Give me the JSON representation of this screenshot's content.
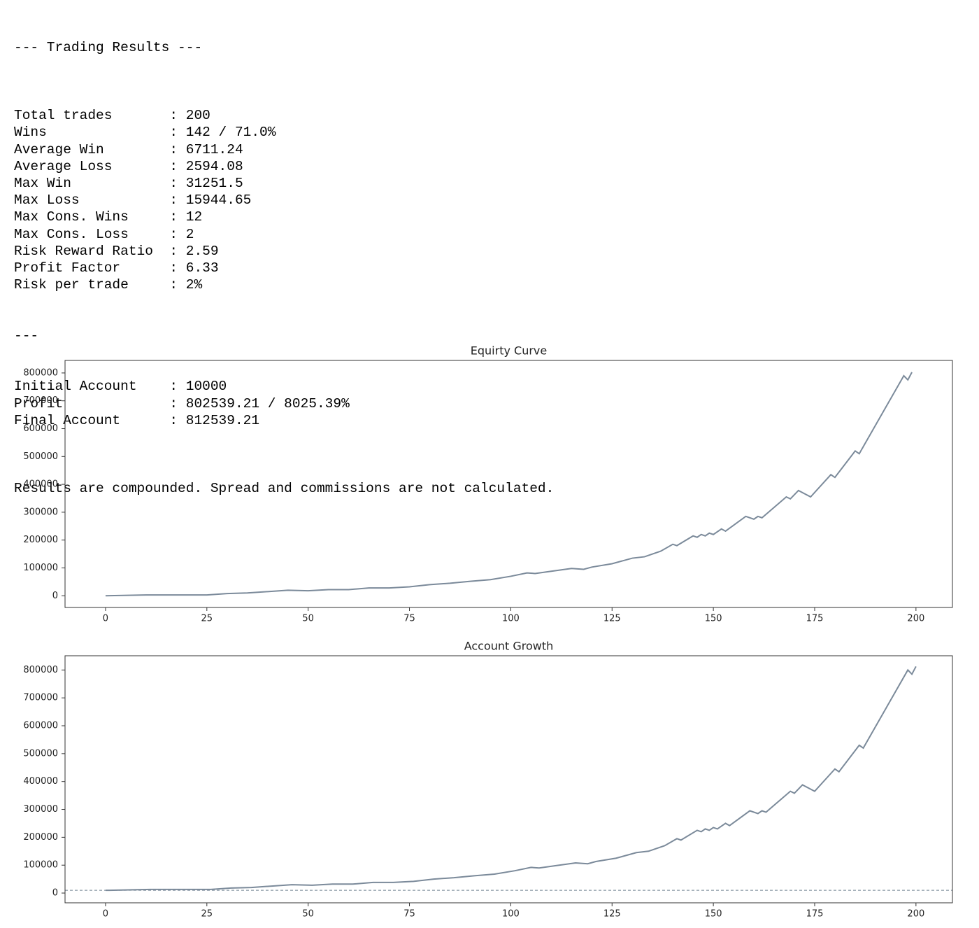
{
  "report": {
    "title": "--- Trading Results ---",
    "stats": [
      "Total trades       : 200",
      "Wins               : 142 / 71.0%",
      "Average Win        : 6711.24",
      "Average Loss       : 2594.08",
      "Max Win            : 31251.5",
      "Max Loss           : 15944.65",
      "Max Cons. Wins     : 12",
      "Max Cons. Loss     : 2",
      "Risk Reward Ratio  : 2.59",
      "Profit Factor      : 6.33",
      "Risk per trade     : 2%"
    ],
    "separator": "---",
    "account": [
      "Initial Account    : 10000",
      "Profit             : 802539.21 / 8025.39%",
      "Final Account      : 812539.21"
    ],
    "note": "Results are compounded. Spread and commissions are not calculated."
  },
  "chart_data": [
    {
      "type": "line",
      "title": "Equirty Curve",
      "x": [
        0,
        10,
        20,
        25,
        30,
        35,
        40,
        45,
        50,
        55,
        60,
        65,
        70,
        75,
        80,
        85,
        90,
        95,
        100,
        104,
        106,
        110,
        115,
        118,
        120,
        125,
        130,
        133,
        137,
        140,
        141,
        145,
        146,
        147,
        148,
        149,
        150,
        152,
        153,
        158,
        160,
        161,
        162,
        168,
        169,
        171,
        174,
        179,
        180,
        185,
        186,
        197,
        198,
        199
      ],
      "series": [
        {
          "color": "#7b8a9a",
          "values": [
            0,
            3000,
            3000,
            3000,
            8000,
            10000,
            15000,
            20000,
            18000,
            22000,
            22000,
            28000,
            28000,
            32000,
            40000,
            45000,
            52000,
            58000,
            70000,
            82000,
            80000,
            88000,
            98000,
            95000,
            103000,
            115000,
            135000,
            140000,
            160000,
            185000,
            180000,
            215000,
            210000,
            220000,
            215000,
            225000,
            220000,
            240000,
            232000,
            285000,
            275000,
            285000,
            280000,
            355000,
            348000,
            378000,
            355000,
            435000,
            425000,
            520000,
            510000,
            790000,
            775000,
            802539.21
          ]
        }
      ],
      "xlim": [
        -10,
        209
      ],
      "xticks": [
        0,
        25,
        50,
        75,
        100,
        125,
        150,
        175,
        200
      ],
      "ylim": [
        -42000,
        845000
      ],
      "yticks": [
        0,
        100000,
        200000,
        300000,
        400000,
        500000,
        600000,
        700000,
        800000
      ]
    },
    {
      "type": "line",
      "title": "Account Growth",
      "x": [
        0,
        1,
        11,
        21,
        26,
        31,
        36,
        41,
        46,
        51,
        56,
        61,
        66,
        71,
        76,
        81,
        86,
        91,
        96,
        101,
        105,
        107,
        111,
        116,
        119,
        121,
        126,
        131,
        134,
        138,
        141,
        142,
        146,
        147,
        148,
        149,
        150,
        151,
        153,
        154,
        159,
        161,
        162,
        163,
        169,
        170,
        172,
        175,
        180,
        181,
        186,
        187,
        198,
        199,
        200
      ],
      "series": [
        {
          "color": "#7b8a9a",
          "values": [
            10000,
            10000,
            13000,
            13000,
            13000,
            18000,
            20000,
            25000,
            30000,
            28000,
            32000,
            32000,
            38000,
            38000,
            42000,
            50000,
            55000,
            62000,
            68000,
            80000,
            92000,
            90000,
            98000,
            108000,
            105000,
            113000,
            125000,
            145000,
            150000,
            170000,
            195000,
            190000,
            225000,
            220000,
            230000,
            225000,
            235000,
            230000,
            250000,
            242000,
            295000,
            285000,
            295000,
            290000,
            365000,
            358000,
            388000,
            365000,
            445000,
            435000,
            530000,
            520000,
            800000,
            785000,
            812539.21
          ]
        }
      ],
      "reference_line": 10000,
      "xlim": [
        -10,
        209
      ],
      "xticks": [
        0,
        25,
        50,
        75,
        100,
        125,
        150,
        175,
        200
      ],
      "ylim": [
        -35000,
        851000
      ],
      "yticks": [
        0,
        100000,
        200000,
        300000,
        400000,
        500000,
        600000,
        700000,
        800000
      ]
    }
  ]
}
